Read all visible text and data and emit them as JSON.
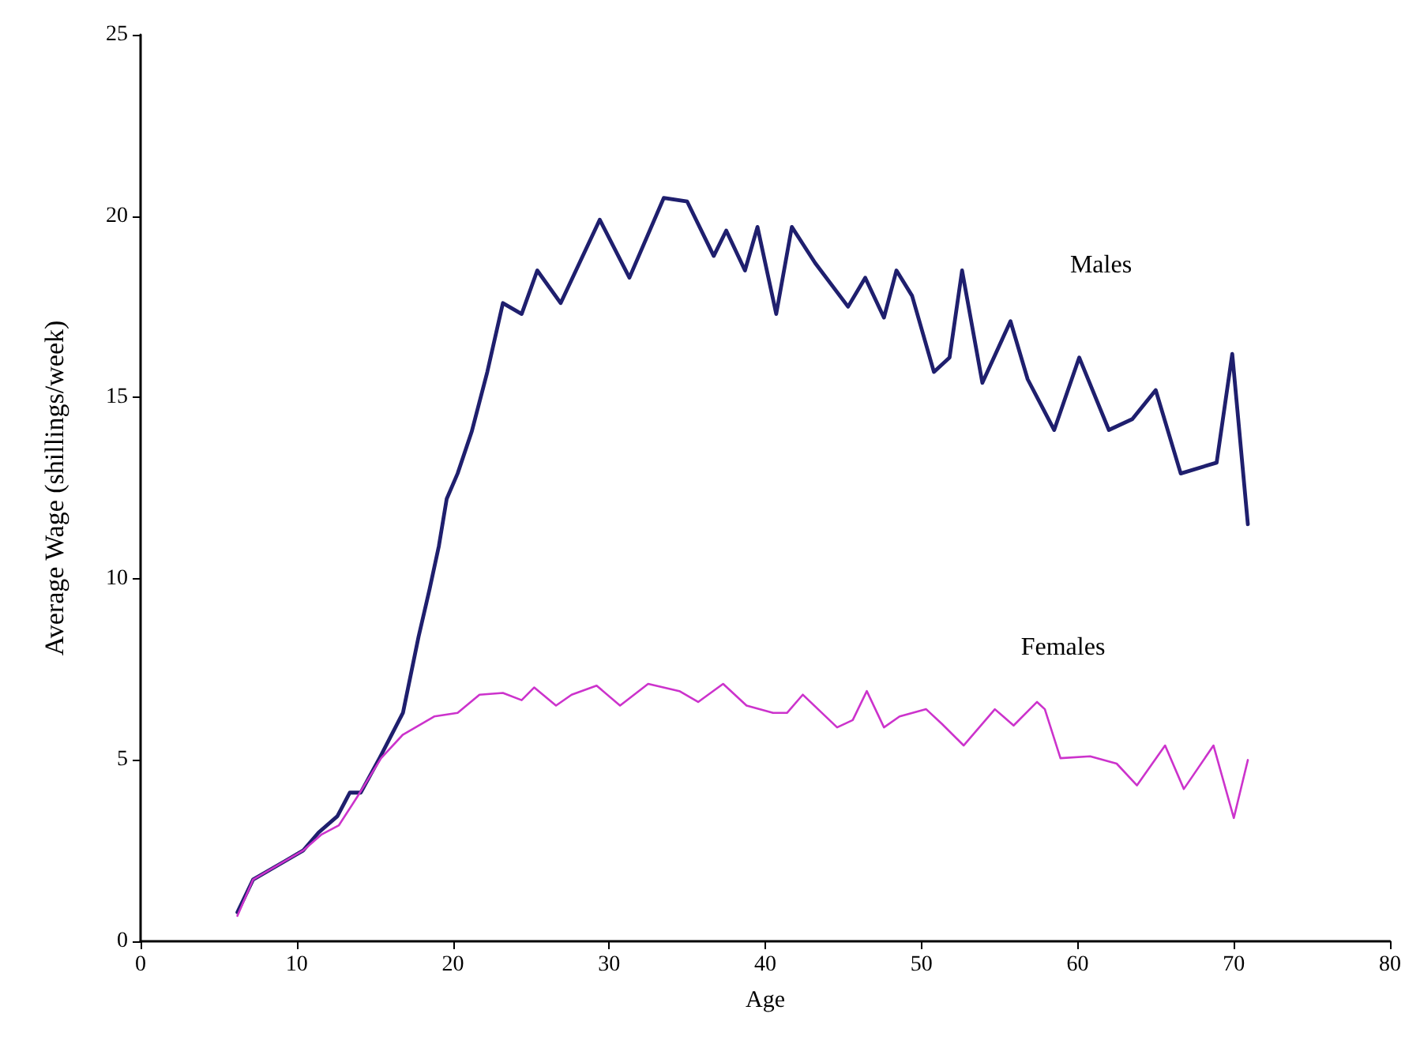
{
  "chart_data": {
    "type": "line",
    "xlabel": "Age",
    "ylabel": "Average Wage (shillings/week)",
    "xlim": [
      0,
      80
    ],
    "xticks": [
      0,
      10,
      20,
      30,
      40,
      50,
      60,
      70,
      80
    ],
    "ylim": [
      0,
      25
    ],
    "yticks": [
      0,
      5,
      10,
      15,
      20,
      25
    ],
    "grid": false,
    "marker": "none",
    "line_style": "solid",
    "series": [
      {
        "name": "Males",
        "color": "#1f1f6e",
        "x": [
          6.2,
          7.2,
          9.2,
          10.4,
          11.4,
          12.6,
          13.4,
          14.1,
          15.3,
          16.8,
          17.8,
          18.5,
          19.1,
          19.6,
          20.3,
          21.2,
          22.2,
          23.2,
          24.4,
          25.4,
          26.9,
          29.4,
          31.3,
          33.5,
          35,
          36.7,
          37.5,
          38.7,
          39.5,
          40.7,
          41.7,
          43.2,
          45.3,
          46.4,
          47.6,
          48.4,
          49.4,
          50.8,
          51.8,
          52.6,
          53.9,
          55.7,
          56.8,
          58.5,
          60.1,
          62,
          63.5,
          65,
          66.6,
          68.9,
          69.9,
          70.9
        ],
        "values": [
          0.8,
          1.7,
          2.2,
          2.5,
          3,
          3.45,
          4.1,
          4.1,
          5.05,
          6.3,
          8.4,
          9.7,
          10.9,
          12.2,
          12.9,
          14.05,
          15.7,
          17.6,
          17.3,
          18.5,
          17.6,
          19.9,
          18.3,
          20.5,
          20.4,
          18.9,
          19.6,
          18.5,
          19.7,
          17.3,
          19.7,
          18.7,
          17.5,
          18.3,
          17.2,
          18.5,
          17.8,
          15.7,
          16.1,
          18.5,
          15.4,
          17.1,
          15.5,
          14.1,
          16.1,
          14.1,
          14.4,
          15.2,
          12.9,
          13.2,
          16.2,
          11.5
        ]
      },
      {
        "name": "Females",
        "color": "#cc33cc",
        "x": [
          6.2,
          7.2,
          9.2,
          10.4,
          11.6,
          12.7,
          13.9,
          15.4,
          16.8,
          18.8,
          20.3,
          21.7,
          23.2,
          24.4,
          25.2,
          26.6,
          27.6,
          29.2,
          30.7,
          32.5,
          34.5,
          35.7,
          37.3,
          38.8,
          40.5,
          41.4,
          42.4,
          44.6,
          45.6,
          46.5,
          47.6,
          48.6,
          50.3,
          51.3,
          52.7,
          54.7,
          55.9,
          57.4,
          57.9,
          58.9,
          60.8,
          62.5,
          63.8,
          65.6,
          66.8,
          68.7,
          70,
          70.9
        ],
        "values": [
          0.7,
          1.7,
          2.2,
          2.5,
          2.95,
          3.2,
          4,
          5.05,
          5.7,
          6.2,
          6.3,
          6.8,
          6.85,
          6.65,
          7,
          6.5,
          6.8,
          7.05,
          6.5,
          7.1,
          6.9,
          6.6,
          7.1,
          6.5,
          6.3,
          6.3,
          6.8,
          5.9,
          6.1,
          6.9,
          5.9,
          6.2,
          6.4,
          6,
          5.4,
          6.4,
          5.95,
          6.6,
          6.4,
          5.05,
          5.1,
          4.9,
          4.3,
          5.4,
          4.2,
          5.4,
          3.4,
          5
        ]
      }
    ]
  }
}
